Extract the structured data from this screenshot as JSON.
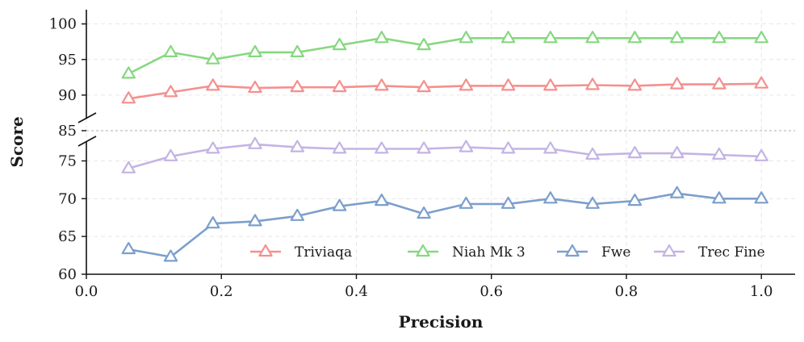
{
  "chart_data": {
    "type": "line",
    "xlabel": "Precision",
    "ylabel": "Score",
    "xlim": [
      0.0,
      1.05
    ],
    "x_ticks": [
      "0.0",
      "0.2",
      "0.4",
      "0.6",
      "0.8",
      "1.0"
    ],
    "x_tick_values": [
      0.0,
      0.2,
      0.4,
      0.6,
      0.8,
      1.0
    ],
    "broken_y_axis": true,
    "upper_ylim": [
      85,
      102
    ],
    "lower_ylim": [
      60,
      79
    ],
    "y_ticks_upper": [
      "85",
      "90",
      "95",
      "100"
    ],
    "y_tick_values_upper": [
      85,
      90,
      95,
      100
    ],
    "y_ticks_lower": [
      "60",
      "65",
      "70",
      "75"
    ],
    "y_tick_values_lower": [
      60,
      65,
      70,
      75
    ],
    "grid": true,
    "marker": "triangle-open",
    "legend_position": "bottom-right",
    "x": [
      0.0625,
      0.125,
      0.1875,
      0.25,
      0.3125,
      0.375,
      0.4375,
      0.5,
      0.5625,
      0.625,
      0.6875,
      0.75,
      0.8125,
      0.875,
      0.9375,
      1.0
    ],
    "series": [
      {
        "name": "Triviaqa",
        "color": "#f4908e",
        "values": [
          89.5,
          90.4,
          91.3,
          91.0,
          91.1,
          91.1,
          91.3,
          91.1,
          91.3,
          91.3,
          91.3,
          91.4,
          91.3,
          91.5,
          91.5,
          91.6
        ]
      },
      {
        "name": "Niah Mk 3",
        "color": "#86d880",
        "values": [
          93,
          96,
          95,
          96,
          96,
          97,
          98,
          97,
          98,
          98,
          98,
          98,
          98,
          98,
          98,
          98
        ]
      },
      {
        "name": "Fwe",
        "color": "#7c9fcc",
        "values": [
          63.3,
          62.3,
          66.7,
          67.0,
          67.7,
          69.0,
          69.7,
          68.0,
          69.3,
          69.3,
          70.0,
          69.3,
          69.7,
          70.7,
          70.0,
          70.0
        ]
      },
      {
        "name": "Trec Fine",
        "color": "#c4b4e4",
        "values": [
          74.0,
          75.6,
          76.6,
          77.2,
          76.8,
          76.6,
          76.6,
          76.6,
          76.8,
          76.6,
          76.6,
          75.8,
          76.0,
          76.0,
          75.8,
          75.6
        ]
      }
    ]
  }
}
